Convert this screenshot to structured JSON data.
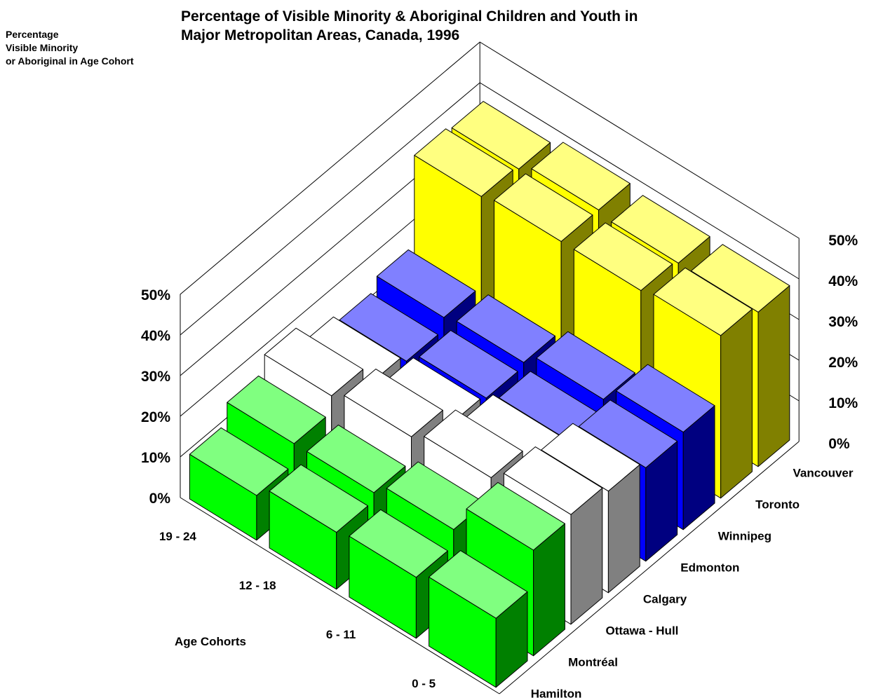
{
  "chart_data": {
    "type": "bar",
    "subtype": "3d-bar",
    "title_lines": [
      "Percentage of  Visible Minority  & Aboriginal Children and Youth in",
      "Major Metropolitan Areas, Canada, 1996"
    ],
    "ylabel_lines": [
      "Percentage",
      "Visible Minority",
      "or Aboriginal in Age Cohort"
    ],
    "xlabel": "Age Cohorts",
    "age_cohorts": [
      "0  - 5",
      "6  - 11",
      "12  - 18",
      "19  - 24"
    ],
    "cities": [
      "Hamilton",
      "Montréal",
      "Ottawa - Hull",
      "Calgary",
      "Edmonton",
      "Winnipeg",
      "Toronto",
      "Vancouver"
    ],
    "y_ticks": [
      "0%",
      "10%",
      "20%",
      "30%",
      "40%",
      "50%"
    ],
    "ylim": [
      0,
      50
    ],
    "grid": true,
    "series": [
      {
        "age_cohort": "0  - 5",
        "values": [
          17,
          26,
          27,
          25,
          23,
          24,
          40,
          38
        ]
      },
      {
        "age_cohort": "6  - 11",
        "values": [
          15,
          19,
          24,
          20,
          18,
          20,
          39,
          38
        ]
      },
      {
        "age_cohort": "12  - 18",
        "values": [
          14,
          16,
          22,
          17,
          16,
          17,
          39,
          39
        ]
      },
      {
        "age_cohort": "19  - 24",
        "values": [
          11,
          16,
          20,
          15,
          13,
          16,
          38,
          37
        ]
      }
    ],
    "colors": {
      "yellow": "#ffff00",
      "blue": "#0000ff",
      "white": "#ffffff",
      "green": "#00ff00"
    }
  }
}
